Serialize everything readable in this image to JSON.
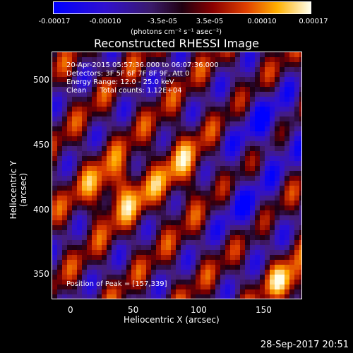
{
  "colorbar": {
    "tick_labels": [
      "-0.00017",
      "-0.00010",
      "-3.5e-05",
      "3.5e-05",
      "0.00010",
      "0.00017"
    ],
    "units_label": "(photons cm⁻² s⁻¹ asec⁻²)"
  },
  "title": "Reconstructed RHESSI Image",
  "info": {
    "time_range": "20-Apr-2015 05:57:36.000 to 06:07:36.000",
    "detectors": "Detectors: 3F 5F 6F 7F 8F 9F, Att 0",
    "energy": "Energy Range: 12.0 - 25.0 keV",
    "clean": "Clean      Total counts: 1.12E+04",
    "peak": "Position of Peak = [157,339]"
  },
  "axes": {
    "xlabel": "Heliocentric X (arcsec)",
    "ylabel": "Heliocentric Y (arcsec)",
    "xticks": [
      "0",
      "50",
      "100",
      "150"
    ],
    "yticks": [
      "500",
      "450",
      "400",
      "350"
    ]
  },
  "timestamp": "28-Sep-2017 20:51"
}
